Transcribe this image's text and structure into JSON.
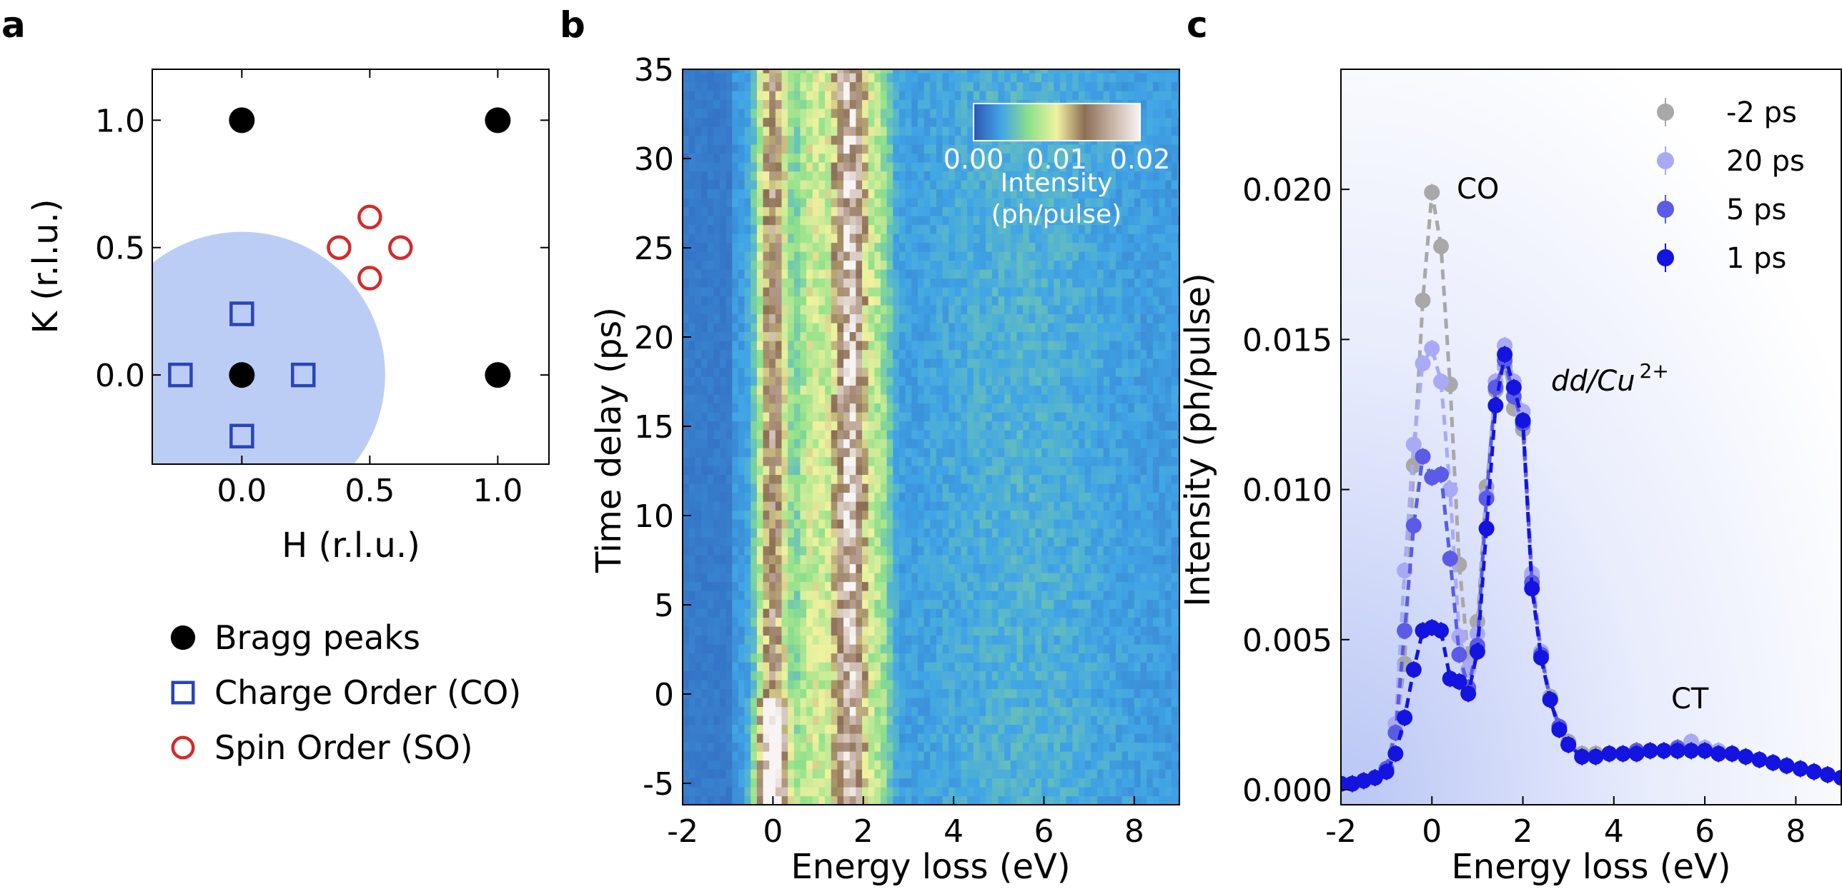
{
  "panels": {
    "a": "a",
    "b": "b",
    "c": "c"
  },
  "chart_data": [
    {
      "type": "scatter",
      "panel": "a",
      "xlabel": "H (r.l.u.)",
      "ylabel": "K (r.l.u.)",
      "xlim": [
        -0.35,
        1.2
      ],
      "ylim": [
        -0.35,
        1.2
      ],
      "xticks": [
        "0.0",
        "0.5",
        "1.0"
      ],
      "xtick_values": [
        0.0,
        0.5,
        1.0
      ],
      "yticks": [
        "0.0",
        "0.5",
        "1.0"
      ],
      "ytick_values": [
        0.0,
        0.5,
        1.0
      ],
      "shaded_region": {
        "shape": "circle",
        "center": [
          0,
          0
        ],
        "radius": 0.56,
        "color": "#bccdf5"
      },
      "series": [
        {
          "name": "Bragg peaks",
          "marker": "filled-circle",
          "color": "#000000",
          "points": [
            [
              0,
              0
            ],
            [
              1,
              0
            ],
            [
              0,
              1
            ],
            [
              1,
              1
            ]
          ]
        },
        {
          "name": "Charge Order (CO)",
          "marker": "open-square",
          "color": "#2a44b8",
          "points": [
            [
              0.24,
              0
            ],
            [
              -0.24,
              0
            ],
            [
              0,
              0.24
            ],
            [
              0,
              -0.24
            ]
          ]
        },
        {
          "name": "Spin Order (SO)",
          "marker": "open-circle",
          "color": "#d42a2a",
          "points": [
            [
              0.5,
              0.62
            ],
            [
              0.5,
              0.38
            ],
            [
              0.38,
              0.5
            ],
            [
              0.62,
              0.5
            ]
          ]
        }
      ],
      "legend": [
        "Bragg peaks",
        "Charge Order (CO)",
        "Spin Order (SO)"
      ]
    },
    {
      "type": "heatmap",
      "panel": "b",
      "xlabel": "Energy loss (eV)",
      "ylabel": "Time delay (ps)",
      "xlim": [
        -2,
        9
      ],
      "ylim": [
        -6.2,
        35
      ],
      "xticks": [
        "-2",
        "0",
        "2",
        "4",
        "6",
        "8"
      ],
      "xtick_values": [
        -2,
        0,
        2,
        4,
        6,
        8
      ],
      "yticks": [
        "-5",
        "0",
        "5",
        "10",
        "15",
        "20",
        "25",
        "30",
        "35"
      ],
      "ytick_values": [
        -5,
        0,
        5,
        10,
        15,
        20,
        25,
        30,
        35
      ],
      "colorbar": {
        "label": "Intensity (ph/pulse)",
        "label_line1": "Intensity",
        "label_line2": "(ph/pulse)",
        "ticks": [
          "0.00",
          "0.01",
          "0.02"
        ],
        "range": [
          0,
          0.02
        ],
        "colors": [
          "#2d57b3",
          "#41a5e6",
          "#8fe08a",
          "#f0f2a0",
          "#8c6e55",
          "#c8b4a6",
          "#f8f4f4"
        ]
      },
      "features": {
        "co_peak_eV": 0.0,
        "dd_peak_eV": 1.7,
        "time_zero_ps": 0.0
      }
    },
    {
      "type": "line",
      "panel": "c",
      "xlabel": "Energy loss (eV)",
      "ylabel": "Intensity (ph/pulse)",
      "xlim": [
        -2,
        9
      ],
      "ylim": [
        -0.0005,
        0.024
      ],
      "xticks": [
        "-2",
        "0",
        "2",
        "4",
        "6",
        "8"
      ],
      "xtick_values": [
        -2,
        0,
        2,
        4,
        6,
        8
      ],
      "yticks": [
        "0.000",
        "0.005",
        "0.010",
        "0.015",
        "0.020"
      ],
      "ytick_values": [
        0.0,
        0.005,
        0.01,
        0.015,
        0.02
      ],
      "annotations": [
        "CO",
        "dd/Cu",
        "2+",
        "CT"
      ],
      "x": [
        -2.0,
        -1.75,
        -1.5,
        -1.25,
        -1.0,
        -0.8,
        -0.6,
        -0.4,
        -0.2,
        0.0,
        0.2,
        0.4,
        0.6,
        0.8,
        1.0,
        1.2,
        1.4,
        1.6,
        1.8,
        2.0,
        2.2,
        2.4,
        2.6,
        2.8,
        3.0,
        3.3,
        3.6,
        3.9,
        4.2,
        4.5,
        4.8,
        5.1,
        5.4,
        5.7,
        6.0,
        6.3,
        6.6,
        6.9,
        7.2,
        7.5,
        7.8,
        8.1,
        8.4,
        8.7,
        9.0
      ],
      "series": [
        {
          "name": "-2 ps",
          "color": "#a8a8a8",
          "values": [
            0.0002,
            0.0002,
            0.0003,
            0.0004,
            0.0007,
            0.0019,
            0.0042,
            0.0108,
            0.0163,
            0.0199,
            0.0181,
            0.0135,
            0.0075,
            0.0044,
            0.0056,
            0.0101,
            0.0133,
            0.0141,
            0.0127,
            0.012,
            0.0071,
            0.0046,
            0.0031,
            0.0021,
            0.0016,
            0.0012,
            0.0012,
            0.0012,
            0.0012,
            0.0013,
            0.0013,
            0.0013,
            0.0013,
            0.0013,
            0.0013,
            0.0012,
            0.0012,
            0.0011,
            0.001,
            0.0009,
            0.0008,
            0.0007,
            0.0006,
            0.0005,
            0.0004
          ]
        },
        {
          "name": "20 ps",
          "color": "#a9aaf6",
          "values": [
            0.0002,
            0.0002,
            0.0003,
            0.0004,
            0.0007,
            0.0022,
            0.0073,
            0.0115,
            0.0142,
            0.0147,
            0.0136,
            0.01,
            0.0051,
            0.004,
            0.0052,
            0.0098,
            0.0136,
            0.0148,
            0.0136,
            0.0126,
            0.0072,
            0.0046,
            0.003,
            0.002,
            0.0015,
            0.0011,
            0.0011,
            0.0012,
            0.0012,
            0.0012,
            0.0013,
            0.0013,
            0.0013,
            0.0016,
            0.0014,
            0.0013,
            0.0012,
            0.0011,
            0.001,
            0.0009,
            0.0008,
            0.0007,
            0.0006,
            0.0005,
            0.0004
          ]
        },
        {
          "name": "5 ps",
          "color": "#5b5be8",
          "values": [
            0.0002,
            0.0002,
            0.0003,
            0.0004,
            0.0007,
            0.0019,
            0.0053,
            0.0088,
            0.0111,
            0.0104,
            0.0105,
            0.0077,
            0.0045,
            0.0034,
            0.0048,
            0.0097,
            0.0134,
            0.0143,
            0.0131,
            0.0122,
            0.0069,
            0.0045,
            0.003,
            0.0021,
            0.0015,
            0.0011,
            0.0011,
            0.0012,
            0.0012,
            0.0013,
            0.0013,
            0.0013,
            0.0014,
            0.0013,
            0.0013,
            0.0012,
            0.0012,
            0.0011,
            0.001,
            0.0009,
            0.0008,
            0.0007,
            0.0006,
            0.0005,
            0.0004
          ]
        },
        {
          "name": "1 ps",
          "color": "#1414e0",
          "values": [
            0.0002,
            0.0002,
            0.0003,
            0.0004,
            0.0006,
            0.0012,
            0.0024,
            0.004,
            0.0053,
            0.0054,
            0.0053,
            0.0037,
            0.0036,
            0.0032,
            0.0046,
            0.0087,
            0.0128,
            0.0145,
            0.0134,
            0.0123,
            0.0067,
            0.0044,
            0.003,
            0.002,
            0.0015,
            0.0011,
            0.0011,
            0.0012,
            0.0012,
            0.0012,
            0.0013,
            0.0013,
            0.0013,
            0.0013,
            0.0013,
            0.0012,
            0.0012,
            0.0011,
            0.001,
            0.0009,
            0.0008,
            0.0007,
            0.0006,
            0.0005,
            0.0004
          ]
        }
      ],
      "legend": [
        "-2 ps",
        "20 ps",
        "5 ps",
        "1 ps"
      ]
    }
  ]
}
